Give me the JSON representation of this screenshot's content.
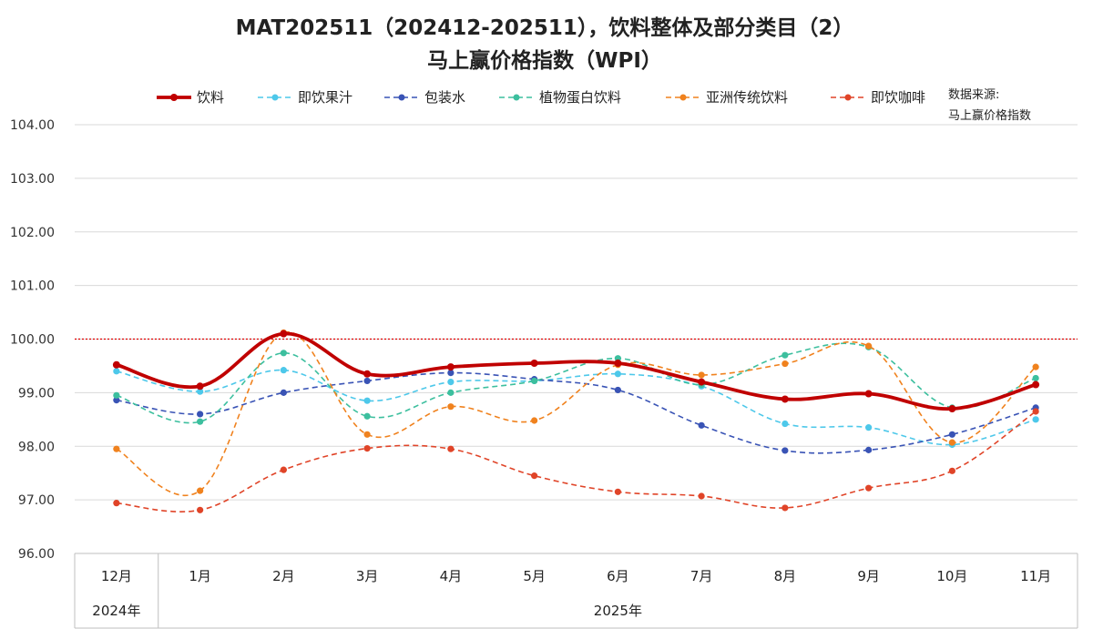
{
  "chart_data": {
    "type": "line",
    "title_line1": "MAT202511（202412-202511），饮料整体及部分类目（2）",
    "title_line2": "马上赢价格指数（WPI）",
    "source_line1": "数据来源:",
    "source_line2": "马上赢价格指数",
    "categories": [
      "12月",
      "1月",
      "2月",
      "3月",
      "4月",
      "5月",
      "6月",
      "7月",
      "8月",
      "9月",
      "10月",
      "11月"
    ],
    "year_groups": [
      {
        "label": "2024年",
        "span": 1
      },
      {
        "label": "2025年",
        "span": 11
      }
    ],
    "ylim": [
      96,
      104
    ],
    "yticks": [
      "96.00",
      "97.00",
      "98.00",
      "99.00",
      "100.00",
      "101.00",
      "102.00",
      "103.00",
      "104.00"
    ],
    "reference_line": 100,
    "grid": "horizontal",
    "legend_position": "top",
    "series": [
      {
        "name": "饮料",
        "color": "#c00000",
        "style": "solid",
        "values": [
          99.52,
          99.12,
          100.1,
          99.35,
          99.48,
          99.55,
          99.55,
          99.2,
          98.88,
          98.98,
          98.7,
          99.15
        ]
      },
      {
        "name": "即饮果汁",
        "color": "#4dc8ea",
        "style": "dashed",
        "values": [
          99.4,
          99.02,
          99.42,
          98.85,
          99.2,
          99.22,
          99.35,
          99.12,
          98.42,
          98.35,
          98.03,
          98.5
        ]
      },
      {
        "name": "包装水",
        "color": "#3953b5",
        "style": "dashed",
        "values": [
          98.86,
          98.6,
          99.0,
          99.22,
          99.37,
          99.25,
          99.05,
          98.39,
          97.92,
          97.93,
          98.22,
          98.72
        ]
      },
      {
        "name": "植物蛋白饮料",
        "color": "#3cbf9e",
        "style": "dashed",
        "values": [
          98.95,
          98.46,
          99.74,
          98.56,
          99.0,
          99.22,
          99.64,
          99.15,
          99.7,
          99.85,
          98.72,
          99.27
        ]
      },
      {
        "name": "亚洲传统饮料",
        "color": "#f0821e",
        "style": "dashed",
        "values": [
          97.95,
          97.17,
          100.12,
          98.22,
          98.74,
          98.48,
          99.52,
          99.33,
          99.54,
          99.87,
          98.07,
          99.48
        ]
      },
      {
        "name": "即饮咖啡",
        "color": "#e04428",
        "style": "dashed",
        "values": [
          96.94,
          96.81,
          97.56,
          97.96,
          97.95,
          97.45,
          97.15,
          97.07,
          96.85,
          97.22,
          97.54,
          98.65
        ]
      }
    ]
  }
}
